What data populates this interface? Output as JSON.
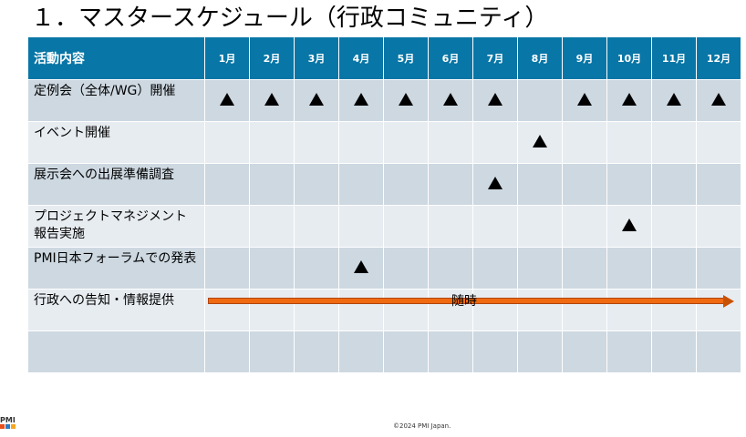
{
  "title": "１．マスタースケジュール（行政コミュニティ）",
  "table": {
    "header_activity": "活動内容",
    "months": [
      "1月",
      "2月",
      "3月",
      "4月",
      "5月",
      "6月",
      "7月",
      "8月",
      "9月",
      "10月",
      "11月",
      "12月"
    ],
    "rows": [
      {
        "label": "定例会（全体/WG）開催",
        "marks": [
          1,
          1,
          1,
          1,
          1,
          1,
          1,
          0,
          1,
          1,
          1,
          1
        ]
      },
      {
        "label": "イベント開催",
        "marks": [
          0,
          0,
          0,
          0,
          0,
          0,
          0,
          1,
          0,
          0,
          0,
          0
        ]
      },
      {
        "label": "展示会への出展準備調査",
        "marks": [
          0,
          0,
          0,
          0,
          0,
          0,
          1,
          0,
          0,
          0,
          0,
          0
        ]
      },
      {
        "label": "プロジェクトマネジメント報告実施",
        "marks": [
          0,
          0,
          0,
          0,
          0,
          0,
          0,
          0,
          0,
          1,
          0,
          0
        ]
      },
      {
        "label": "PMI日本フォーラムでの発表",
        "marks": [
          0,
          0,
          0,
          1,
          0,
          0,
          0,
          0,
          0,
          0,
          0,
          0
        ]
      },
      {
        "label": "行政への告知・情報提供",
        "marks": [
          0,
          0,
          0,
          0,
          0,
          0,
          0,
          0,
          0,
          0,
          0,
          0
        ]
      },
      {
        "label": "",
        "marks": [
          0,
          0,
          0,
          0,
          0,
          0,
          0,
          0,
          0,
          0,
          0,
          0
        ]
      }
    ],
    "ongoing_label": "随時"
  },
  "logo_text": "PMI",
  "footer": "©2024 PMI Japan.",
  "colors": {
    "header": "#0876a6",
    "row_odd": "#cdd8e1",
    "row_even": "#e7ecf1",
    "arrow": "#f06a10"
  }
}
